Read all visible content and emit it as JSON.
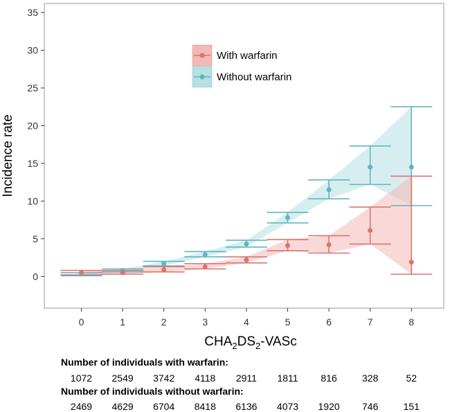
{
  "chart_data": {
    "type": "line",
    "title": "",
    "xlabel_main": "CHA",
    "xlabel_sub1": "2",
    "xlabel_mid": "DS",
    "xlabel_sub2": "2",
    "xlabel_end": "-VASc",
    "ylabel": "Incidence rate",
    "x": [
      0,
      1,
      2,
      3,
      4,
      5,
      6,
      7,
      8
    ],
    "xticks": [
      "0",
      "1",
      "2",
      "3",
      "4",
      "5",
      "6",
      "7",
      "8"
    ],
    "yticks": [
      "0",
      "5",
      "10",
      "15",
      "20",
      "25",
      "30",
      "35"
    ],
    "ylim": [
      -4.2,
      36.2
    ],
    "legend_position": "top-center",
    "series": [
      {
        "name": "With warfarin",
        "color": "#d9746f",
        "band_color": "#f4b9b6",
        "values": [
          0.5,
          0.5,
          0.9,
          1.3,
          2.2,
          4.1,
          4.2,
          6.1,
          1.9
        ],
        "lower": [
          0.2,
          0.3,
          0.6,
          1.0,
          1.8,
          3.4,
          3.1,
          4.3,
          0.3
        ],
        "upper": [
          0.8,
          0.8,
          1.3,
          1.7,
          2.6,
          4.9,
          5.4,
          9.2,
          13.3
        ]
      },
      {
        "name": "Without warfarin",
        "color": "#5fb5c0",
        "band_color": "#b7e0e3",
        "values": [
          0.3,
          0.8,
          1.7,
          2.9,
          4.3,
          7.8,
          11.5,
          14.5,
          14.5
        ],
        "lower": [
          0.1,
          0.6,
          1.4,
          2.6,
          3.9,
          7.1,
          10.3,
          12.2,
          9.4
        ],
        "upper": [
          0.5,
          1.0,
          2.0,
          3.3,
          4.8,
          8.5,
          12.8,
          17.3,
          22.5
        ]
      }
    ]
  },
  "table": {
    "with_heading": "Number of individuals with warfarin:",
    "with_counts": [
      "1072",
      "2549",
      "3742",
      "4118",
      "2911",
      "1811",
      "816",
      "328",
      "52"
    ],
    "without_heading": "Number of individuals without warfarin:",
    "without_counts": [
      "2469",
      "4629",
      "6704",
      "8418",
      "6136",
      "4073",
      "1920",
      "746",
      "151"
    ]
  }
}
